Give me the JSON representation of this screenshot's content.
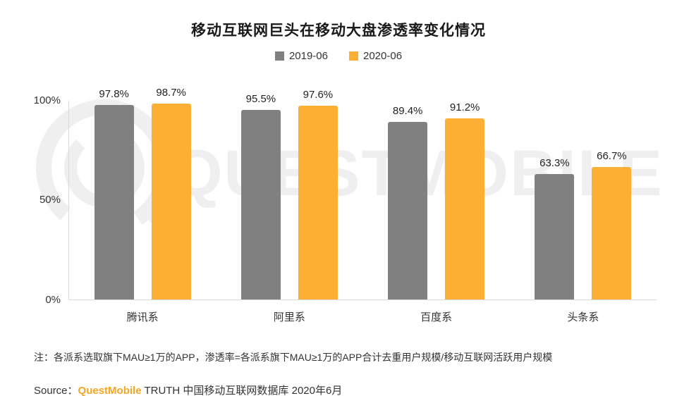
{
  "title": "移动互联网巨头在移动大盘渗透率变化情况",
  "chart_data": {
    "type": "bar",
    "title": "移动互联网巨头在移动大盘渗透率变化情况",
    "categories": [
      "腾讯系",
      "阿里系",
      "百度系",
      "头条系"
    ],
    "series": [
      {
        "name": "2019-06",
        "color": "#808080",
        "values": [
          97.8,
          95.5,
          89.4,
          63.3
        ]
      },
      {
        "name": "2020-06",
        "color": "#FBB035",
        "values": [
          98.7,
          97.6,
          91.2,
          66.7
        ]
      }
    ],
    "xlabel": "",
    "ylabel": "",
    "ylim": [
      0,
      100
    ],
    "yticks": [
      "100%",
      "50%",
      "0%"
    ],
    "value_suffix": "%",
    "grid": "off",
    "legend_position": "top-center"
  },
  "watermark": {
    "logo": "questmobile-q-logo",
    "text": "QUESTMOBILE",
    "color": "#efefef"
  },
  "note": "注：各派系选取旗下MAU≥1万的APP，渗透率=各派系旗下MAU≥1万的APP合计去重用户规模/移动互联网活跃用户规模",
  "source": {
    "prefix": "Source：",
    "brand": "QuestMobile",
    "rest": " TRUTH 中国移动互联网数据库 2020年6月",
    "brand_color": "#F5A623"
  }
}
